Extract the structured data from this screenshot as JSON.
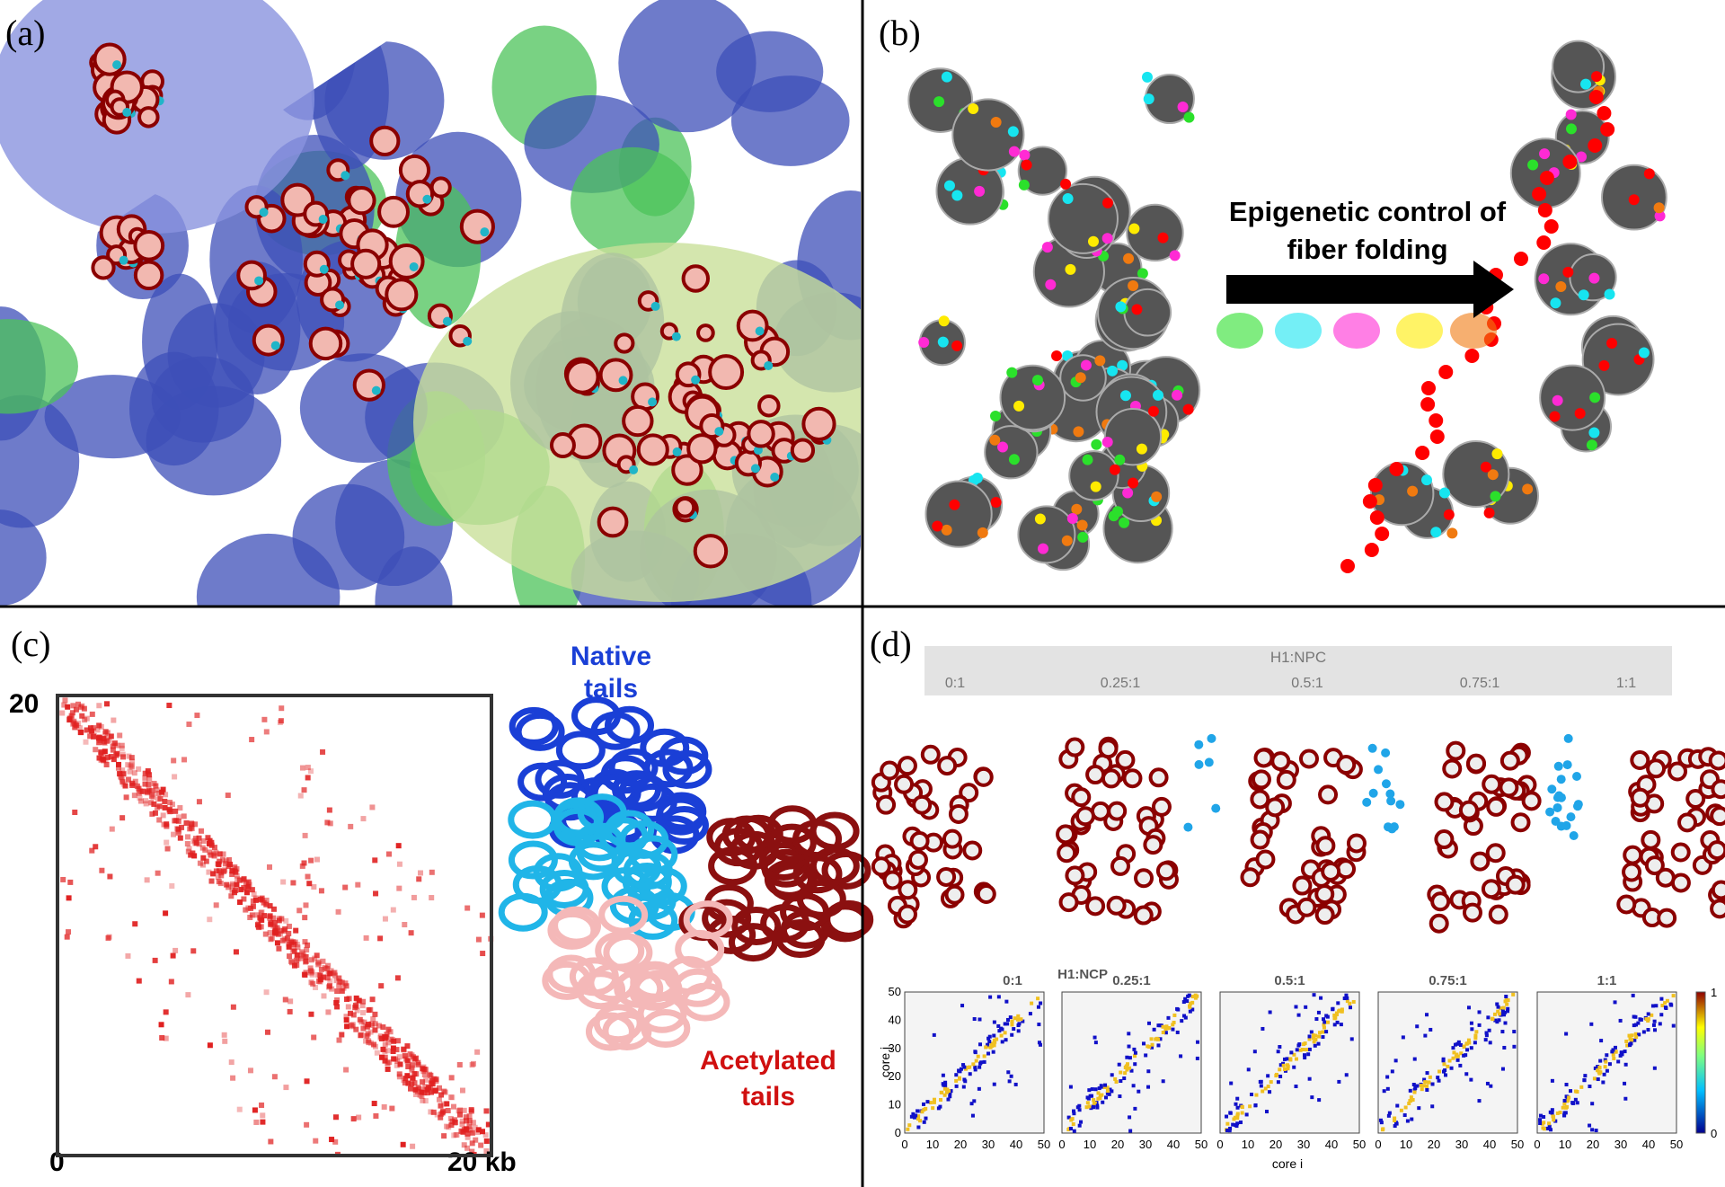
{
  "panels": {
    "a": {
      "label": "(a)"
    },
    "b": {
      "label": "(b)",
      "arrow_text": [
        "Epigenetic control of",
        "fiber folding"
      ]
    },
    "c": {
      "label": "(c)",
      "y_end": "20",
      "x_start": "0",
      "x_end": "20 kb",
      "native": [
        "Native",
        "tails"
      ],
      "acetylated": [
        "Acetylated",
        "tails"
      ]
    },
    "d": {
      "label": "(d)",
      "header": "H1:NPC",
      "ratios": [
        "0:1",
        "0.25:1",
        "0.5:1",
        "0.75:1",
        "1:1"
      ],
      "maps_header": "H1:NCP",
      "map_titles": [
        "0:1",
        "0.25:1",
        "0.5:1",
        "0.75:1",
        "1:1"
      ],
      "map_lim": [
        0,
        50
      ],
      "map_ticks": [
        0,
        10,
        20,
        30,
        40,
        50
      ],
      "x_label": "core i",
      "y_label": "core j",
      "colorbar_ticks": [
        1,
        0
      ]
    }
  }
}
